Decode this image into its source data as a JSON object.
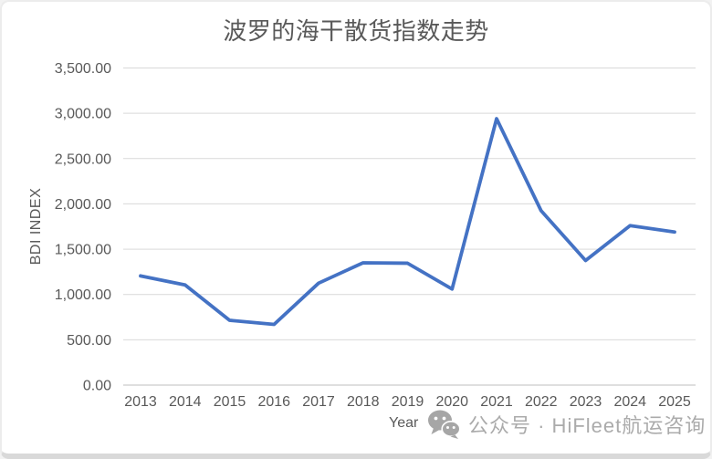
{
  "chart_data": {
    "type": "line",
    "title": "波罗的海干散货指数走势",
    "xlabel": "Year",
    "ylabel": "BDI INDEX",
    "categories": [
      "2013",
      "2014",
      "2015",
      "2016",
      "2017",
      "2018",
      "2019",
      "2020",
      "2021",
      "2022",
      "2023",
      "2024",
      "2025"
    ],
    "series": [
      {
        "name": "BDI INDEX",
        "values": [
          1205,
          1105,
          715,
          670,
          1125,
          1350,
          1345,
          1060,
          2940,
          1925,
          1375,
          1760,
          1690
        ]
      }
    ],
    "ylim": [
      0,
      3500
    ],
    "ytick_values": [
      0,
      500,
      1000,
      1500,
      2000,
      2500,
      3000,
      3500
    ],
    "ytick_labels": [
      "0.00",
      "500.00",
      "1,000.00",
      "1,500.00",
      "2,000.00",
      "2,500.00",
      "3,000.00",
      "3,500.00"
    ],
    "grid": true,
    "legend": false,
    "colors": {
      "line": "#4472C4",
      "gridline": "#d9d9d9",
      "axis_line": "#bfbfbf",
      "tick_label": "#595959"
    }
  },
  "watermark": {
    "icon": "wechat-icon",
    "text": "公众号 · HiFleet航运咨询"
  }
}
